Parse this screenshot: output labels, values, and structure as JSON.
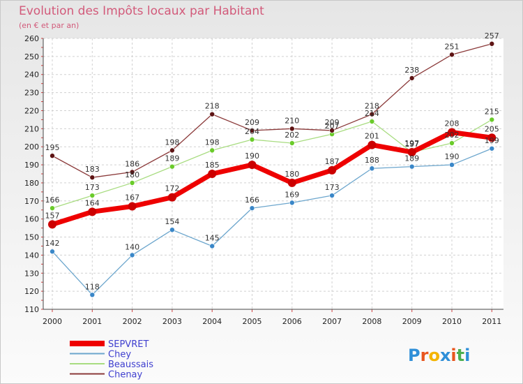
{
  "title": "Evolution des Impôts locaux par Habitant",
  "subtitle": "(en € et par an)",
  "logo": {
    "letters": [
      "P",
      "r",
      "o",
      "x",
      "i",
      "t",
      "i"
    ],
    "colors": [
      "#2f8fd8",
      "#e8561e",
      "#f4b400",
      "#2f8fd8",
      "#e8561e",
      "#4caf50",
      "#2f8fd8"
    ]
  },
  "chart_data": {
    "type": "line",
    "title": "Evolution des Impôts locaux par Habitant",
    "ylabel": "(en € et par an)",
    "categories": [
      "2000",
      "2001",
      "2002",
      "2003",
      "2004",
      "2005",
      "2006",
      "2007",
      "2008",
      "2009",
      "2010",
      "2011"
    ],
    "ylim": [
      110,
      260
    ],
    "yticks": [
      "110",
      "120",
      "130",
      "140",
      "150",
      "160",
      "170",
      "180",
      "190",
      "200",
      "210",
      "220",
      "230",
      "240",
      "250",
      "260"
    ],
    "legend_position": "bottom-left",
    "series": [
      {
        "name": "SEPVRET",
        "color": "#ee0000",
        "marker": "#cc0000",
        "width": 7,
        "msize": 6,
        "values": [
          157,
          164,
          167,
          172,
          185,
          190,
          180,
          187,
          201,
          197,
          208,
          205
        ],
        "labels": [
          "157",
          "164",
          "167",
          "172",
          "185",
          "190",
          "180",
          "187",
          "201",
          "197",
          "208",
          "205"
        ]
      },
      {
        "name": "Chey",
        "color": "#6ca6cd",
        "marker": "#3a87c8",
        "width": 1.3,
        "msize": 3.5,
        "values": [
          142,
          118,
          140,
          154,
          145,
          166,
          169,
          173,
          188,
          189,
          190,
          199
        ],
        "labels": [
          "142",
          "118",
          "140",
          "154",
          "145",
          "166",
          "169",
          "173",
          "188",
          "189",
          "190",
          "199"
        ]
      },
      {
        "name": "Beaussais",
        "color": "#a8dc80",
        "marker": "#6acb2a",
        "width": 1.3,
        "msize": 3.5,
        "values": [
          166,
          173,
          180,
          189,
          198,
          204,
          202,
          207,
          214,
          197,
          202,
          215
        ],
        "labels": [
          "166",
          "173",
          "180",
          "189",
          "198",
          "204",
          "202",
          "207",
          "214",
          "197",
          "202",
          "215"
        ]
      },
      {
        "name": "Chenay",
        "color": "#8b3a3a",
        "marker": "#5e1414",
        "width": 1.3,
        "msize": 3.5,
        "values": [
          195,
          183,
          186,
          198,
          218,
          209,
          210,
          209,
          218,
          238,
          251,
          257
        ],
        "labels": [
          "195",
          "183",
          "186",
          "198",
          "218",
          "209",
          "210",
          "209",
          "218",
          "238",
          "251",
          "257"
        ]
      }
    ]
  }
}
